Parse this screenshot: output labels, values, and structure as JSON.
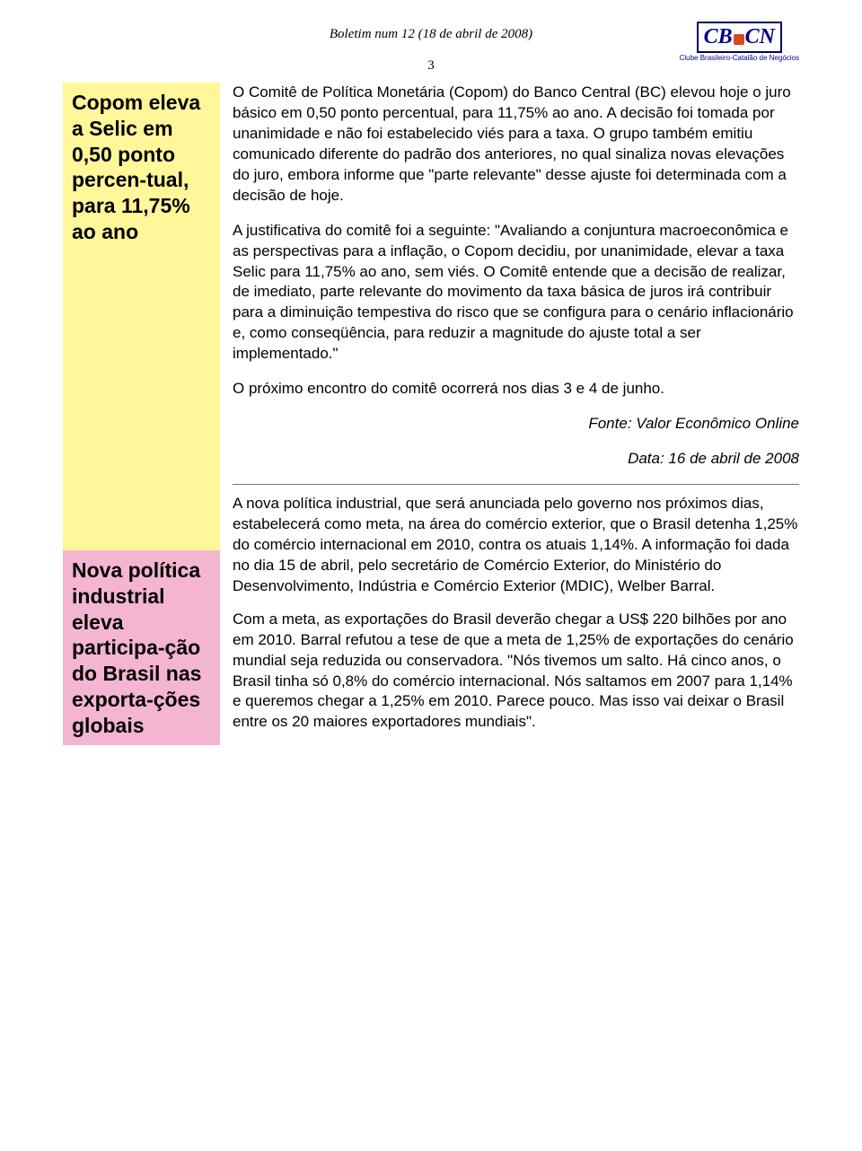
{
  "header": {
    "title": "Boletim num 12 (18 de abril de 2008)",
    "page_number": "3",
    "logo_left": "CB",
    "logo_right": "CN",
    "logo_sub": "Clube Brasileiro-Catalão de Negócios"
  },
  "sidebar": {
    "block1": "Copom eleva a Selic em 0,50 ponto percen-tual, para 11,75% ao ano",
    "block2": "Nova política industrial eleva participa-ção do Brasil nas exporta-ções globais"
  },
  "article1": {
    "p1": "O Comitê de Política Monetária (Copom) do Banco Central (BC) elevou hoje o juro básico em 0,50 ponto percentual, para 11,75% ao ano. A decisão foi tomada por unanimidade e não foi estabelecido viés para a taxa. O grupo também emitiu comunicado diferente do padrão dos anteriores, no qual sinaliza novas elevações do juro, embora informe que \"parte relevante\" desse ajuste foi determinada com a decisão de hoje.",
    "p2": "A justificativa do comitê foi a seguinte: \"Avaliando a conjuntura macroeconômica e as perspectivas para a inflação, o Copom decidiu, por unanimidade, elevar a taxa Selic para 11,75% ao ano, sem viés. O Comitê entende que a decisão de realizar, de imediato, parte relevante do movimento da taxa básica de juros irá contribuir para a diminuição tempestiva do risco que se configura para o cenário inflacionário e, como conseqüência, para reduzir a magnitude do ajuste total a ser implementado.\"",
    "p3": "O próximo encontro do comitê ocorrerá nos dias 3 e 4 de junho.",
    "source": "Fonte: Valor Econômico Online",
    "date": "Data: 16 de abril de 2008"
  },
  "article2": {
    "p1": "A nova política industrial, que será anunciada pelo governo nos próximos dias, estabelecerá como meta, na área do comércio exterior, que o Brasil detenha 1,25% do comércio internacional em 2010, contra os atuais 1,14%. A informação foi dada no dia 15 de abril, pelo secretário de Comércio Exterior, do Ministério do Desenvolvimento, Indústria e Comércio Exterior (MDIC), Welber Barral.",
    "p2": "Com a meta, as exportações do Brasil deverão chegar a US$ 220 bilhões por ano em 2010. Barral refutou a tese de que a meta de 1,25% de exportações do cenário mundial seja reduzida ou conservadora. \"Nós tivemos um salto. Há cinco anos, o Brasil tinha só 0,8% do comércio internacional. Nós saltamos em 2007 para 1,14% e queremos chegar a 1,25% em 2010. Parece pouco. Mas isso vai deixar o Brasil entre os 20 maiores exportadores mundiais\"."
  },
  "colors": {
    "yellow": "#fff799",
    "pink": "#f4b5d0",
    "logo_blue": "#000088",
    "logo_orange": "#d94a1f"
  }
}
